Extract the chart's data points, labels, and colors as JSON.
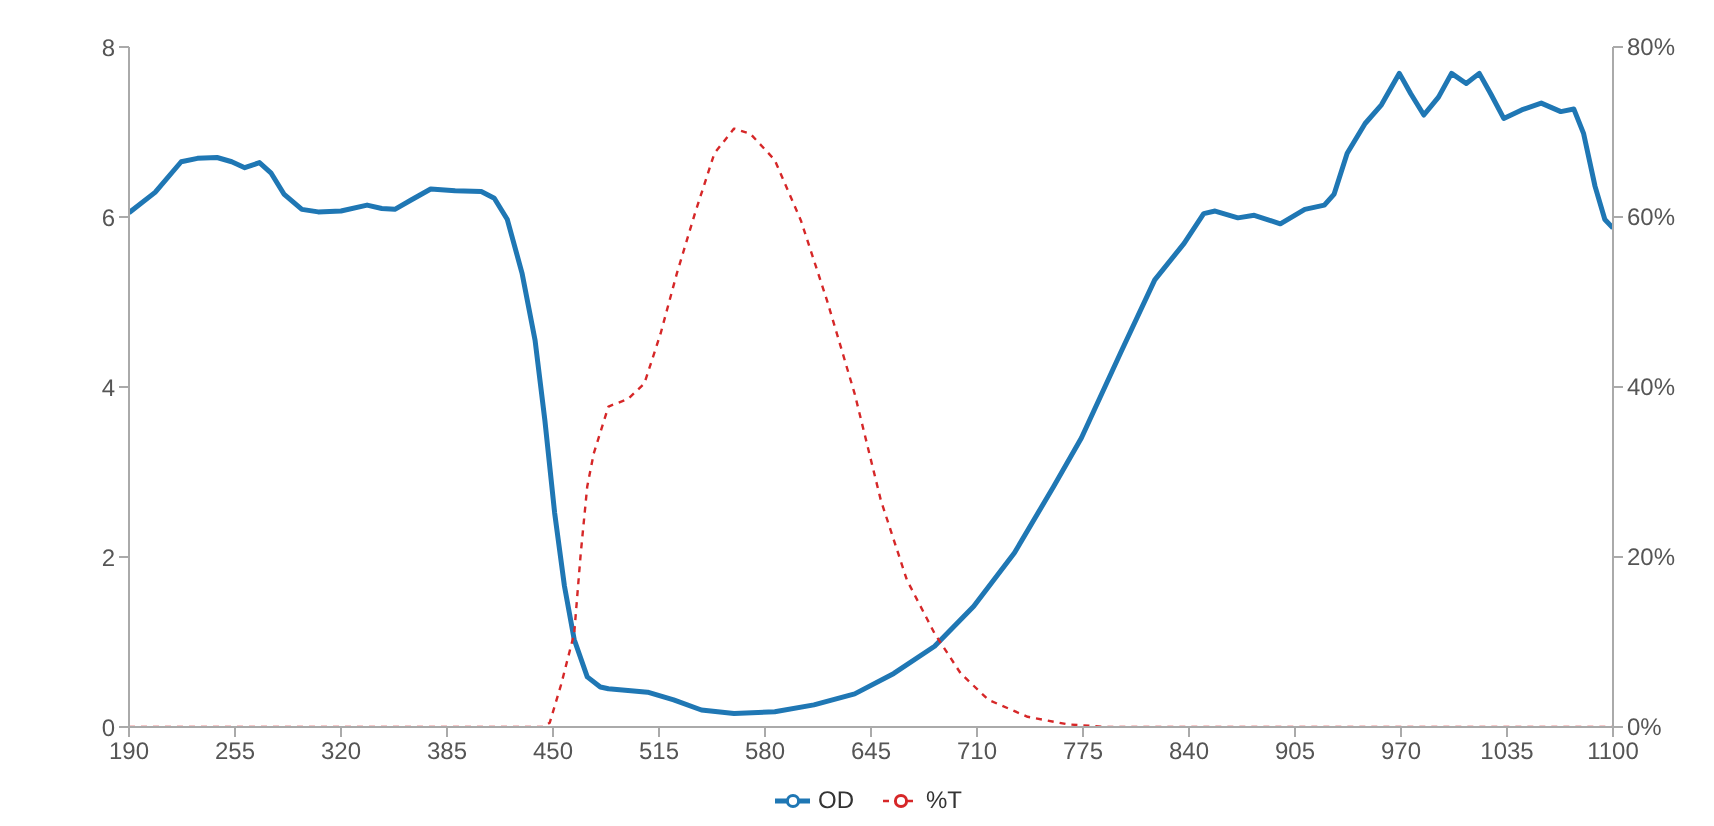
{
  "chart_data": {
    "type": "line",
    "xlim": [
      190,
      1100
    ],
    "xticks": [
      190,
      255,
      320,
      385,
      450,
      515,
      580,
      645,
      710,
      775,
      840,
      905,
      970,
      1035,
      1100
    ],
    "ylim": [
      0,
      8
    ],
    "yticks": [
      0,
      2,
      4,
      6,
      8
    ],
    "y2lim": [
      0,
      80
    ],
    "y2ticks": [
      {
        "value": 0,
        "label": "0%"
      },
      {
        "value": 20,
        "label": "20%"
      },
      {
        "value": 40,
        "label": "40%"
      },
      {
        "value": 60,
        "label": "60%"
      },
      {
        "value": 80,
        "label": "80%"
      }
    ],
    "legend": "bottom",
    "series": [
      {
        "name": "OD",
        "color": "#1f77b4",
        "line_style": "solid",
        "x": [
          190,
          206,
          222,
          232,
          244,
          253,
          261,
          270,
          277,
          285,
          296,
          306,
          320,
          336,
          345,
          353,
          363,
          375,
          390,
          406,
          414,
          422,
          431,
          439,
          445,
          451,
          457,
          463,
          471,
          479,
          484,
          496,
          508,
          524,
          541,
          561,
          586,
          610,
          635,
          659,
          684,
          708,
          733,
          757,
          774,
          798,
          819,
          837,
          849,
          856,
          870,
          880,
          896,
          911,
          923,
          929,
          937,
          948,
          958,
          969,
          976,
          984,
          993,
          1001,
          1010,
          1018,
          1025,
          1033,
          1044,
          1056,
          1068,
          1076,
          1082,
          1089,
          1095,
          1100
        ],
        "values": [
          6.05,
          6.29,
          6.65,
          6.69,
          6.7,
          6.65,
          6.58,
          6.64,
          6.52,
          6.27,
          6.09,
          6.06,
          6.07,
          6.14,
          6.1,
          6.09,
          6.2,
          6.33,
          6.31,
          6.3,
          6.22,
          5.97,
          5.34,
          4.55,
          3.61,
          2.52,
          1.66,
          1.03,
          0.59,
          0.47,
          0.45,
          0.43,
          0.41,
          0.32,
          0.2,
          0.16,
          0.18,
          0.26,
          0.39,
          0.63,
          0.95,
          1.42,
          2.05,
          2.83,
          3.4,
          4.4,
          5.26,
          5.69,
          6.04,
          6.07,
          5.99,
          6.02,
          5.92,
          6.09,
          6.14,
          6.27,
          6.75,
          7.1,
          7.32,
          7.69,
          7.45,
          7.2,
          7.41,
          7.69,
          7.57,
          7.69,
          7.45,
          7.16,
          7.26,
          7.34,
          7.24,
          7.27,
          6.98,
          6.36,
          5.97,
          5.87
        ]
      },
      {
        "name": "%T",
        "color": "#d62728",
        "line_style": "dashed",
        "axis": "y2",
        "x": [
          190,
          444,
          448,
          455,
          463,
          467,
          471,
          475,
          484,
          496,
          506,
          516,
          526,
          537,
          549,
          561,
          571,
          586,
          602,
          618,
          635,
          651,
          667,
          684,
          700,
          717,
          741,
          766,
          790,
          1100
        ],
        "values": [
          0,
          0,
          0.5,
          5,
          11,
          20.4,
          28.3,
          32.2,
          37.7,
          38.6,
          40.4,
          46.3,
          53.4,
          60.4,
          67.5,
          70.4,
          69.8,
          66.7,
          59.6,
          50.2,
          39.2,
          26.7,
          17.3,
          11,
          6.3,
          3.2,
          1.2,
          0.3,
          0,
          0
        ]
      }
    ]
  }
}
